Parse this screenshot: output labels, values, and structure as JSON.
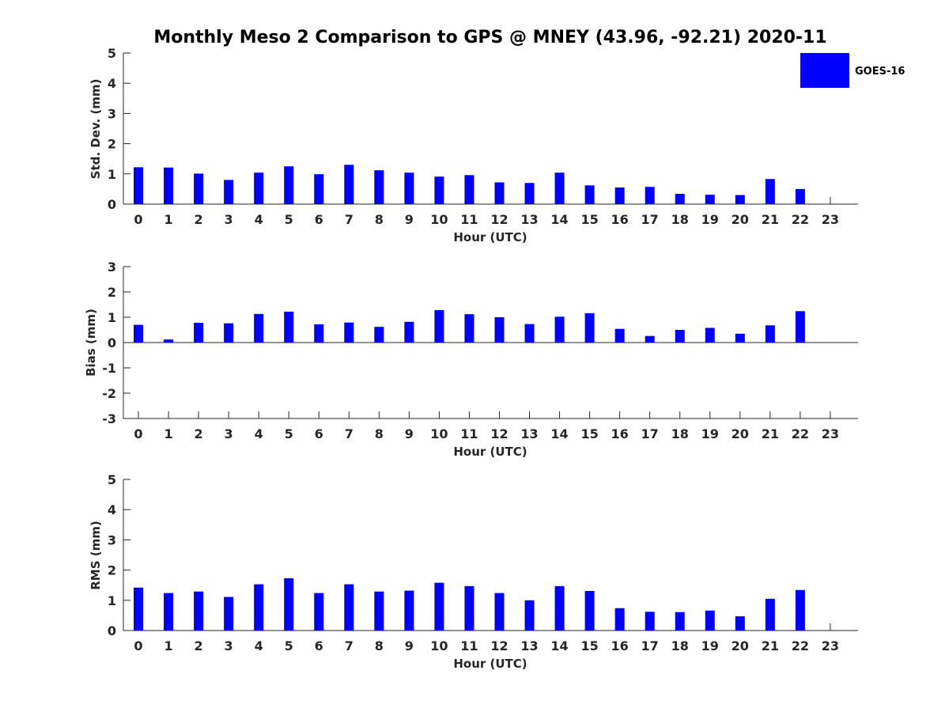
{
  "title": "Monthly Meso 2 Comparison to GPS @ MNEY (43.96, -92.21) 2020-11",
  "legend": {
    "label": "GOES-16",
    "color": "#0000ff"
  },
  "chart_data": [
    {
      "type": "bar",
      "title": "",
      "xlabel": "Hour (UTC)",
      "ylabel": "Std. Dev. (mm)",
      "ylim": [
        0,
        5
      ],
      "yticks": [
        0,
        1,
        2,
        3,
        4,
        5
      ],
      "categories": [
        "0",
        "1",
        "2",
        "3",
        "4",
        "5",
        "6",
        "7",
        "8",
        "9",
        "10",
        "11",
        "12",
        "13",
        "14",
        "15",
        "16",
        "17",
        "18",
        "19",
        "20",
        "21",
        "22",
        "23"
      ],
      "series": [
        {
          "name": "GOES-16",
          "color": "#0000ff",
          "values": [
            1.22,
            1.21,
            1.01,
            0.8,
            1.04,
            1.25,
            0.99,
            1.3,
            1.12,
            1.04,
            0.91,
            0.96,
            0.72,
            0.7,
            1.04,
            0.62,
            0.55,
            0.57,
            0.34,
            0.31,
            0.3,
            0.83,
            0.5,
            null
          ]
        }
      ],
      "legend": "top-right",
      "grid": false
    },
    {
      "type": "bar",
      "title": "",
      "xlabel": "Hour (UTC)",
      "ylabel": "Bias (mm)",
      "ylim": [
        -3,
        3
      ],
      "yticks": [
        -3,
        -2,
        -1,
        0,
        1,
        2,
        3
      ],
      "categories": [
        "0",
        "1",
        "2",
        "3",
        "4",
        "5",
        "6",
        "7",
        "8",
        "9",
        "10",
        "11",
        "12",
        "13",
        "14",
        "15",
        "16",
        "17",
        "18",
        "19",
        "20",
        "21",
        "22",
        "23"
      ],
      "series": [
        {
          "name": "GOES-16",
          "color": "#0000ff",
          "values": [
            0.7,
            0.12,
            0.78,
            0.76,
            1.13,
            1.22,
            0.72,
            0.79,
            0.62,
            0.82,
            1.28,
            1.12,
            1.0,
            0.73,
            1.02,
            1.16,
            0.54,
            0.26,
            0.5,
            0.58,
            0.35,
            0.68,
            1.24,
            null
          ]
        }
      ],
      "grid": false
    },
    {
      "type": "bar",
      "title": "",
      "xlabel": "Hour (UTC)",
      "ylabel": "RMS (mm)",
      "ylim": [
        0,
        5
      ],
      "yticks": [
        0,
        1,
        2,
        3,
        4,
        5
      ],
      "categories": [
        "0",
        "1",
        "2",
        "3",
        "4",
        "5",
        "6",
        "7",
        "8",
        "9",
        "10",
        "11",
        "12",
        "13",
        "14",
        "15",
        "16",
        "17",
        "18",
        "19",
        "20",
        "21",
        "22",
        "23"
      ],
      "series": [
        {
          "name": "GOES-16",
          "color": "#0000ff",
          "values": [
            1.42,
            1.24,
            1.29,
            1.11,
            1.53,
            1.73,
            1.24,
            1.53,
            1.29,
            1.32,
            1.58,
            1.47,
            1.24,
            1.0,
            1.47,
            1.31,
            0.74,
            0.62,
            0.61,
            0.66,
            0.47,
            1.05,
            1.34,
            null
          ]
        }
      ],
      "grid": false
    }
  ]
}
